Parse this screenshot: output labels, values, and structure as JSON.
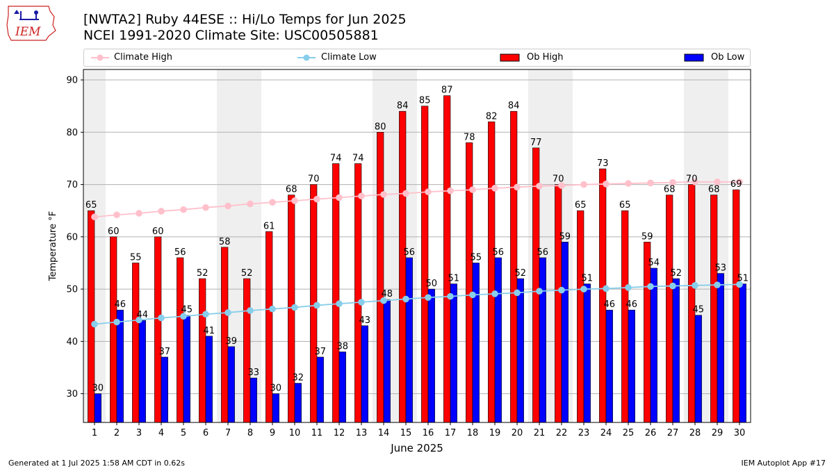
{
  "logo": {
    "text": "IEM",
    "color": "#cc2222"
  },
  "header": {
    "title": "[NWTA2] Ruby 44ESE :: Hi/Lo Temps for Jun 2025",
    "subtitle": "NCEI 1991-2020 Climate Site: USC00505881"
  },
  "legend": {
    "climate_high": "Climate High",
    "climate_low": "Climate Low",
    "ob_high": "Ob High",
    "ob_low": "Ob Low"
  },
  "footer": {
    "generated": "Generated at 1 Jul 2025 1:58 AM CDT in 0.62s",
    "app": "IEM Autoplot App #17"
  },
  "chart_data": {
    "type": "bar",
    "xlabel": "June 2025",
    "ylabel": "Temperature °F",
    "ylim": [
      24.5,
      92
    ],
    "yticks": [
      30,
      40,
      50,
      60,
      70,
      80,
      90
    ],
    "grid": true,
    "legend_position": "top",
    "categories": [
      "1",
      "2",
      "3",
      "4",
      "5",
      "6",
      "7",
      "8",
      "9",
      "10",
      "11",
      "12",
      "13",
      "14",
      "15",
      "16",
      "17",
      "18",
      "19",
      "20",
      "21",
      "22",
      "23",
      "24",
      "25",
      "26",
      "27",
      "28",
      "29",
      "30"
    ],
    "weekend_shading_days": [
      1,
      7,
      8,
      14,
      15,
      21,
      22,
      28,
      29
    ],
    "colors": {
      "ob_high": "#ff0000",
      "ob_low": "#0000ff",
      "climate_high": "#ffc0cb",
      "climate_low": "#87ceeb",
      "weekend": "#efefef",
      "grid": "#b0b0b0"
    },
    "series": [
      {
        "name": "Ob High",
        "kind": "bar",
        "values": [
          65,
          60,
          55,
          60,
          56,
          52,
          58,
          52,
          61,
          68,
          70,
          74,
          74,
          80,
          84,
          85,
          87,
          78,
          82,
          84,
          77,
          70,
          65,
          73,
          65,
          59,
          68,
          70,
          68,
          69
        ]
      },
      {
        "name": "Ob Low",
        "kind": "bar",
        "values": [
          30,
          46,
          44,
          37,
          45,
          41,
          39,
          33,
          30,
          32,
          37,
          38,
          43,
          48,
          56,
          50,
          51,
          55,
          56,
          52,
          56,
          59,
          51,
          46,
          46,
          54,
          52,
          45,
          53,
          51
        ]
      },
      {
        "name": "Climate High",
        "kind": "line",
        "values": [
          63.8,
          64.2,
          64.5,
          64.9,
          65.2,
          65.6,
          65.9,
          66.3,
          66.6,
          66.9,
          67.2,
          67.5,
          67.8,
          68.1,
          68.3,
          68.6,
          68.8,
          69.0,
          69.3,
          69.5,
          69.7,
          69.8,
          70.0,
          70.1,
          70.2,
          70.3,
          70.4,
          70.5,
          70.5,
          70.5
        ]
      },
      {
        "name": "Climate Low",
        "kind": "line",
        "values": [
          43.3,
          43.7,
          44.1,
          44.5,
          44.8,
          45.2,
          45.5,
          45.9,
          46.2,
          46.5,
          46.9,
          47.2,
          47.5,
          47.8,
          48.1,
          48.4,
          48.6,
          48.9,
          49.1,
          49.3,
          49.6,
          49.8,
          50.0,
          50.1,
          50.3,
          50.5,
          50.6,
          50.7,
          50.8,
          50.9
        ]
      }
    ]
  }
}
